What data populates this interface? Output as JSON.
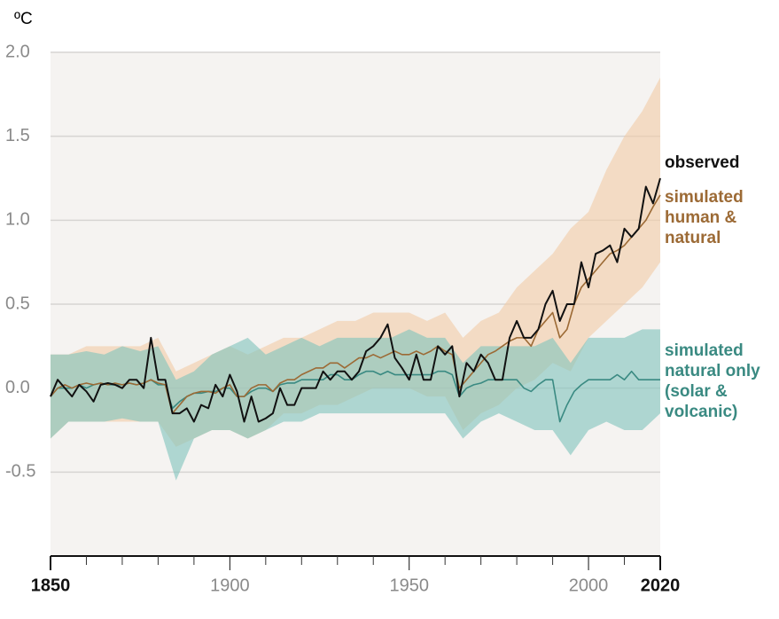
{
  "chart_data": {
    "type": "line",
    "y_label": "ºC",
    "x": [
      1850,
      1852,
      1854,
      1856,
      1858,
      1860,
      1862,
      1864,
      1866,
      1868,
      1870,
      1872,
      1874,
      1876,
      1878,
      1880,
      1882,
      1884,
      1886,
      1888,
      1890,
      1892,
      1894,
      1896,
      1898,
      1900,
      1902,
      1904,
      1906,
      1908,
      1910,
      1912,
      1914,
      1916,
      1918,
      1920,
      1922,
      1924,
      1926,
      1928,
      1930,
      1932,
      1934,
      1936,
      1938,
      1940,
      1942,
      1944,
      1946,
      1948,
      1950,
      1952,
      1954,
      1956,
      1958,
      1960,
      1962,
      1964,
      1966,
      1968,
      1970,
      1972,
      1974,
      1976,
      1978,
      1980,
      1982,
      1984,
      1986,
      1988,
      1990,
      1992,
      1994,
      1996,
      1998,
      2000,
      2002,
      2004,
      2006,
      2008,
      2010,
      2012,
      2014,
      2016,
      2018,
      2020
    ],
    "band_x": [
      1850,
      1855,
      1860,
      1865,
      1870,
      1875,
      1880,
      1885,
      1890,
      1895,
      1900,
      1905,
      1910,
      1915,
      1920,
      1925,
      1930,
      1935,
      1940,
      1945,
      1950,
      1955,
      1960,
      1965,
      1970,
      1975,
      1980,
      1985,
      1990,
      1995,
      2000,
      2005,
      2010,
      2015,
      2020
    ],
    "series": [
      {
        "name": "observed",
        "color": "#111111",
        "values": [
          -0.05,
          0.05,
          0.0,
          -0.05,
          0.02,
          -0.02,
          -0.08,
          0.02,
          0.03,
          0.02,
          0.0,
          0.05,
          0.05,
          0.0,
          0.3,
          0.05,
          0.05,
          -0.15,
          -0.15,
          -0.12,
          -0.2,
          -0.1,
          -0.12,
          0.02,
          -0.05,
          0.08,
          -0.02,
          -0.2,
          -0.05,
          -0.2,
          -0.18,
          -0.15,
          0.0,
          -0.1,
          -0.1,
          0.0,
          0.0,
          0.0,
          0.1,
          0.05,
          0.1,
          0.1,
          0.05,
          0.1,
          0.22,
          0.25,
          0.3,
          0.38,
          0.18,
          0.12,
          0.05,
          0.2,
          0.05,
          0.05,
          0.25,
          0.2,
          0.25,
          -0.05,
          0.15,
          0.1,
          0.2,
          0.15,
          0.05,
          0.05,
          0.3,
          0.4,
          0.3,
          0.3,
          0.35,
          0.5,
          0.58,
          0.4,
          0.5,
          0.5,
          0.75,
          0.6,
          0.8,
          0.82,
          0.85,
          0.75,
          0.95,
          0.9,
          0.95,
          1.2,
          1.1,
          1.25
        ]
      },
      {
        "name": "simulated human & natural",
        "color": "#9c6a35",
        "band_color": "#f2cba6",
        "values": [
          -0.05,
          0.0,
          0.02,
          0.0,
          0.02,
          0.03,
          0.02,
          0.03,
          0.02,
          0.03,
          0.02,
          0.03,
          0.02,
          0.03,
          0.05,
          0.03,
          0.02,
          -0.15,
          -0.1,
          -0.05,
          -0.03,
          -0.02,
          -0.02,
          -0.03,
          0.0,
          0.02,
          -0.05,
          -0.05,
          0.0,
          0.02,
          0.02,
          -0.02,
          0.03,
          0.05,
          0.05,
          0.08,
          0.1,
          0.12,
          0.12,
          0.15,
          0.15,
          0.12,
          0.15,
          0.18,
          0.18,
          0.2,
          0.18,
          0.2,
          0.22,
          0.2,
          0.2,
          0.22,
          0.2,
          0.22,
          0.25,
          0.22,
          0.2,
          0.0,
          0.05,
          0.1,
          0.15,
          0.2,
          0.22,
          0.25,
          0.28,
          0.3,
          0.3,
          0.25,
          0.35,
          0.4,
          0.45,
          0.3,
          0.35,
          0.5,
          0.6,
          0.65,
          0.7,
          0.75,
          0.8,
          0.82,
          0.85,
          0.9,
          0.95,
          1.0,
          1.08,
          1.15
        ],
        "band_low": [
          -0.3,
          -0.2,
          -0.2,
          -0.2,
          -0.2,
          -0.2,
          -0.2,
          -0.35,
          -0.3,
          -0.25,
          -0.25,
          -0.3,
          -0.25,
          -0.15,
          -0.15,
          -0.1,
          -0.1,
          -0.05,
          0.0,
          0.0,
          0.0,
          -0.05,
          -0.05,
          -0.25,
          -0.15,
          -0.1,
          0.0,
          0.05,
          0.15,
          0.1,
          0.3,
          0.4,
          0.5,
          0.6,
          0.75
        ],
        "band_high": [
          0.2,
          0.2,
          0.25,
          0.25,
          0.25,
          0.25,
          0.3,
          0.1,
          0.15,
          0.2,
          0.25,
          0.2,
          0.25,
          0.3,
          0.3,
          0.35,
          0.4,
          0.4,
          0.45,
          0.45,
          0.45,
          0.4,
          0.45,
          0.3,
          0.4,
          0.45,
          0.6,
          0.7,
          0.8,
          0.95,
          1.05,
          1.3,
          1.5,
          1.65,
          1.85
        ]
      },
      {
        "name": "simulated natural only (solar & volcanic)",
        "color": "#3a8a82",
        "band_color": "#7fc3bd",
        "values": [
          -0.05,
          0.0,
          0.0,
          0.0,
          0.02,
          0.0,
          0.02,
          0.03,
          0.02,
          0.02,
          0.02,
          0.03,
          0.02,
          0.03,
          0.05,
          0.02,
          0.02,
          -0.12,
          -0.08,
          -0.05,
          -0.03,
          -0.03,
          -0.02,
          -0.02,
          0.0,
          0.0,
          -0.05,
          -0.05,
          -0.02,
          0.0,
          0.0,
          -0.02,
          0.02,
          0.03,
          0.03,
          0.05,
          0.05,
          0.05,
          0.05,
          0.08,
          0.08,
          0.05,
          0.05,
          0.08,
          0.1,
          0.1,
          0.08,
          0.1,
          0.08,
          0.08,
          0.08,
          0.08,
          0.08,
          0.08,
          0.1,
          0.1,
          0.08,
          -0.05,
          0.0,
          0.02,
          0.03,
          0.05,
          0.05,
          0.05,
          0.05,
          0.05,
          0.0,
          -0.02,
          0.02,
          0.05,
          0.05,
          -0.2,
          -0.1,
          -0.02,
          0.02,
          0.05,
          0.05,
          0.05,
          0.05,
          0.08,
          0.05,
          0.1,
          0.05,
          0.05,
          0.05,
          0.05
        ],
        "band_low": [
          -0.3,
          -0.2,
          -0.2,
          -0.2,
          -0.18,
          -0.2,
          -0.2,
          -0.55,
          -0.3,
          -0.25,
          -0.25,
          -0.3,
          -0.25,
          -0.2,
          -0.2,
          -0.15,
          -0.15,
          -0.15,
          -0.15,
          -0.15,
          -0.15,
          -0.15,
          -0.15,
          -0.3,
          -0.2,
          -0.15,
          -0.2,
          -0.25,
          -0.25,
          -0.4,
          -0.25,
          -0.2,
          -0.25,
          -0.25,
          -0.15
        ],
        "band_high": [
          0.2,
          0.2,
          0.22,
          0.2,
          0.25,
          0.22,
          0.25,
          0.05,
          0.1,
          0.2,
          0.25,
          0.3,
          0.2,
          0.25,
          0.3,
          0.25,
          0.3,
          0.3,
          0.3,
          0.3,
          0.35,
          0.3,
          0.3,
          0.15,
          0.25,
          0.25,
          0.25,
          0.25,
          0.3,
          0.15,
          0.3,
          0.3,
          0.3,
          0.35,
          0.35
        ]
      }
    ],
    "xlim": [
      1850,
      2020
    ],
    "ylim": [
      -1.0,
      2.0
    ],
    "xticks": [
      1850,
      1900,
      1950,
      2000,
      2020
    ],
    "xminorticks": [
      1860,
      1870,
      1880,
      1890,
      1910,
      1920,
      1930,
      1940,
      1960,
      1970,
      1980,
      1990,
      2010
    ],
    "yticks": [
      {
        "value": 2.0,
        "label": "2.0"
      },
      {
        "value": 1.5,
        "label": "1.5"
      },
      {
        "value": 1.0,
        "label": "1.0"
      },
      {
        "value": 0.5,
        "label": "0.5"
      },
      {
        "value": 0.0,
        "label": "0.0"
      },
      {
        "value": -0.5,
        "label": "-0.5"
      }
    ],
    "grid": true,
    "background": "#f5f3f1"
  }
}
